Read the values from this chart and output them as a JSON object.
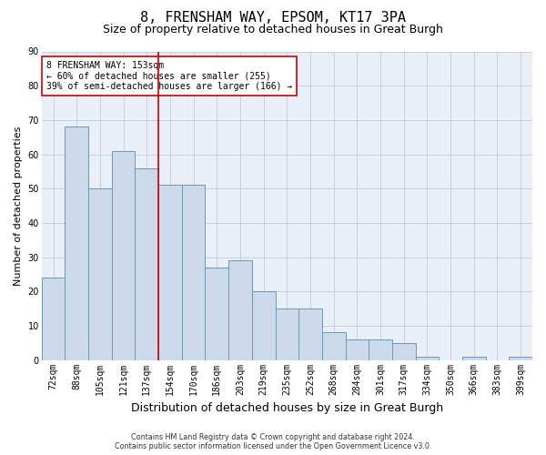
{
  "title": "8, FRENSHAM WAY, EPSOM, KT17 3PA",
  "subtitle": "Size of property relative to detached houses in Great Burgh",
  "xlabel": "Distribution of detached houses by size in Great Burgh",
  "ylabel": "Number of detached properties",
  "categories": [
    "72sqm",
    "88sqm",
    "105sqm",
    "121sqm",
    "137sqm",
    "154sqm",
    "170sqm",
    "186sqm",
    "203sqm",
    "219sqm",
    "235sqm",
    "252sqm",
    "268sqm",
    "284sqm",
    "301sqm",
    "317sqm",
    "334sqm",
    "350sqm",
    "366sqm",
    "383sqm",
    "399sqm"
  ],
  "values": [
    24,
    68,
    50,
    61,
    56,
    51,
    51,
    27,
    29,
    20,
    15,
    15,
    8,
    6,
    6,
    5,
    1,
    0,
    1,
    0,
    1
  ],
  "bar_color": "#ccd9ea",
  "bar_edge_color": "#6699bb",
  "highlight_color": "#cc0000",
  "annotation_box_text": "8 FRENSHAM WAY: 153sqm\n← 60% of detached houses are smaller (255)\n39% of semi-detached houses are larger (166) →",
  "ylim": [
    0,
    90
  ],
  "yticks": [
    0,
    10,
    20,
    30,
    40,
    50,
    60,
    70,
    80,
    90
  ],
  "background_color": "#ffffff",
  "plot_bg_color": "#eaeff7",
  "grid_color": "#c8c8d8",
  "footer_line1": "Contains HM Land Registry data © Crown copyright and database right 2024.",
  "footer_line2": "Contains public sector information licensed under the Open Government Licence v3.0.",
  "title_fontsize": 11,
  "subtitle_fontsize": 9,
  "xlabel_fontsize": 9,
  "ylabel_fontsize": 8,
  "tick_fontsize": 7,
  "annot_fontsize": 7
}
